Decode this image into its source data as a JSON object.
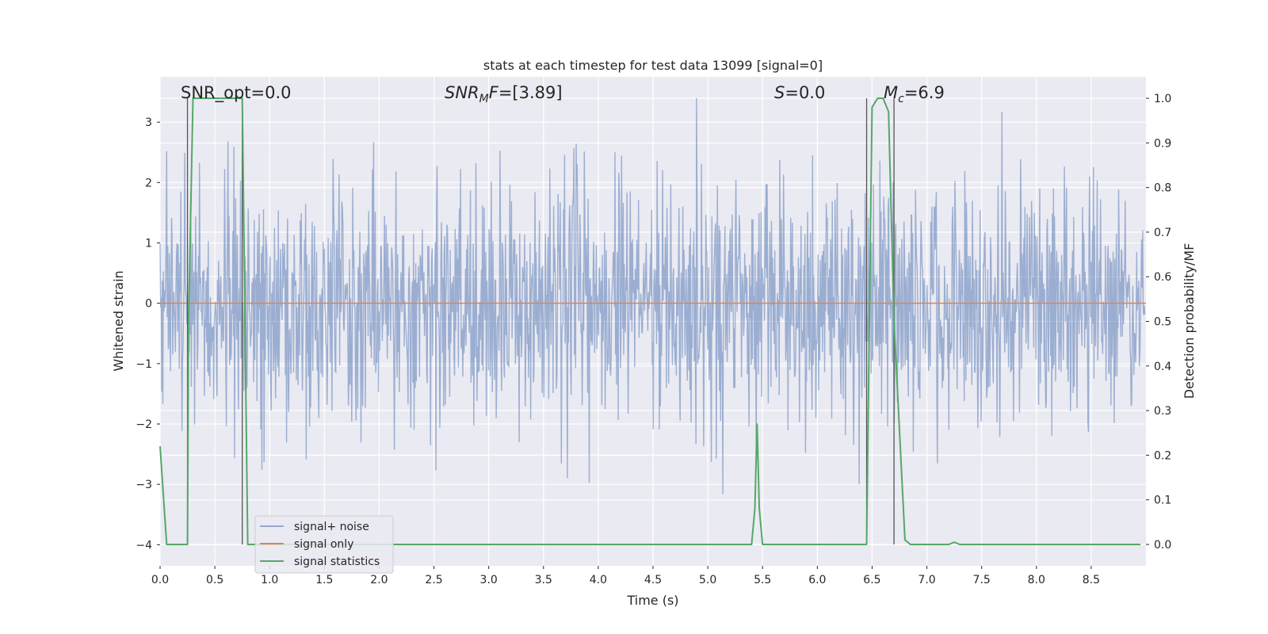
{
  "chart_data": {
    "type": "line",
    "title": "stats at each timestep for test data 13099 [signal=0]",
    "xlabel": "Time (s)",
    "ylabel": "Whitened strain",
    "y2label": "Detection probability/MF",
    "xlim": [
      0.0,
      9.0
    ],
    "ylim": [
      -4.35,
      3.75
    ],
    "y2lim": [
      -0.048,
      1.048
    ],
    "x_ticks": [
      "0.0",
      "0.5",
      "1.0",
      "1.5",
      "2.0",
      "2.5",
      "3.0",
      "3.5",
      "4.0",
      "4.5",
      "5.0",
      "5.5",
      "6.0",
      "6.5",
      "7.0",
      "7.5",
      "8.0",
      "8.5"
    ],
    "y_ticks": [
      "3",
      "2",
      "1",
      "0",
      "−1",
      "−2",
      "−3",
      "−4"
    ],
    "y2_ticks": [
      "1.0",
      "0.9",
      "0.8",
      "0.7",
      "0.6",
      "0.5",
      "0.4",
      "0.3",
      "0.2",
      "0.1",
      "0.0"
    ],
    "grid": true,
    "legend_position": "lower-left",
    "annotations": {
      "snr_opt": "SNR_opt=0.0",
      "snr_mf": "SNR_MF=[3.89]",
      "s": "S=0.0",
      "mc": "M_c=6.9"
    },
    "series": [
      {
        "name": "signal+ noise",
        "color": "#4c72b0",
        "description": "whitened noise, approx. Gaussian, std ~1, range about -3.3 to 3.4",
        "noise_std": 1.0
      },
      {
        "name": "signal only",
        "color": "#dd8452",
        "x": [
          0.0,
          9.0
        ],
        "y": [
          0.0,
          0.0
        ]
      },
      {
        "name": "signal statistics",
        "color": "#55a868",
        "axis": "right",
        "x": [
          0.0,
          0.06,
          0.25,
          0.26,
          0.3,
          0.75,
          0.78,
          0.8,
          5.4,
          5.43,
          5.45,
          5.47,
          5.5,
          6.45,
          6.5,
          6.55,
          6.6,
          6.65,
          6.7,
          6.8,
          6.85,
          7.2,
          7.25,
          7.3,
          8.95
        ],
        "y": [
          0.22,
          0.0,
          0.0,
          0.5,
          1.0,
          1.0,
          0.4,
          0.0,
          0.0,
          0.08,
          0.27,
          0.08,
          0.0,
          0.0,
          0.98,
          1.0,
          1.0,
          0.97,
          0.5,
          0.01,
          0.0,
          0.0,
          0.005,
          0.0,
          0.0
        ]
      }
    ],
    "vertical_lines_x": [
      0.25,
      0.75,
      6.45,
      6.7
    ]
  },
  "legend": {
    "items": [
      "signal+ noise",
      "signal only",
      "signal statistics"
    ]
  }
}
